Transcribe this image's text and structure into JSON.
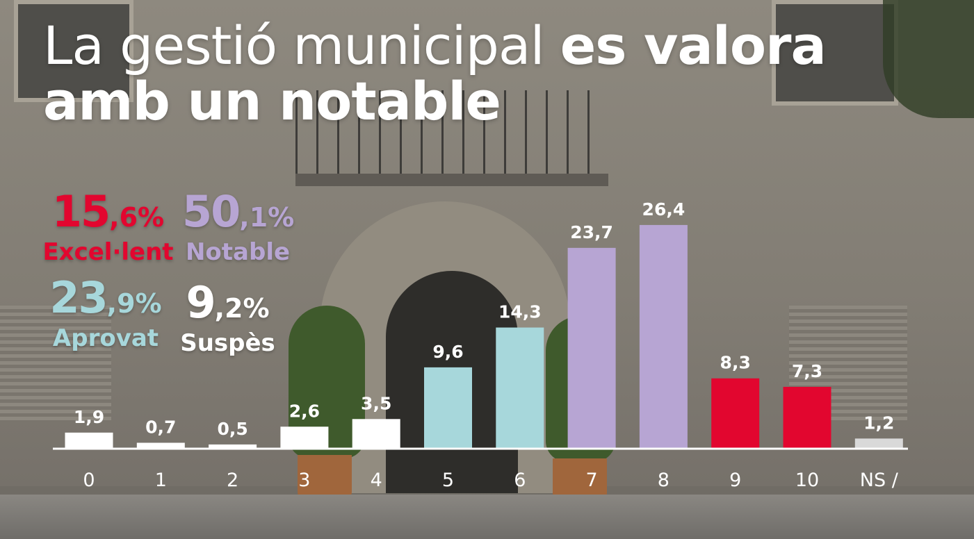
{
  "headline": {
    "light": "La gestió municipal ",
    "bold_1": "es valora",
    "bold_2": "amb un notable"
  },
  "summary": [
    {
      "pct_main": "15",
      "pct_rest": ",6%",
      "label": "Excel·lent",
      "color": "#e2062f"
    },
    {
      "pct_main": "50",
      "pct_rest": ",1%",
      "label": "Notable",
      "color": "#b7a5d3"
    },
    {
      "pct_main": "23",
      "pct_rest": ",9%",
      "label": "Aprovat",
      "color": "#a7d7db"
    },
    {
      "pct_main": "9",
      "pct_rest": ",2%",
      "label": "Suspès",
      "color": "#ffffff"
    }
  ],
  "chart_data": {
    "type": "bar",
    "categories": [
      "0",
      "1",
      "2",
      "3",
      "4",
      "5",
      "6",
      "7",
      "8",
      "9",
      "10",
      "NS /"
    ],
    "values": [
      1.9,
      0.7,
      0.5,
      2.6,
      3.5,
      9.6,
      14.3,
      23.7,
      26.4,
      8.3,
      7.3,
      1.2
    ],
    "value_labels": [
      "1,9",
      "0,7",
      "0,5",
      "2,6",
      "3,5",
      "9,6",
      "14,3",
      "23,7",
      "26,4",
      "8,3",
      "7,3",
      "1,2"
    ],
    "bar_colors": [
      "#ffffff",
      "#ffffff",
      "#ffffff",
      "#ffffff",
      "#ffffff",
      "#a7d7db",
      "#a7d7db",
      "#b7a5d3",
      "#b7a5d3",
      "#e2062f",
      "#e2062f",
      "#d9d9d9"
    ],
    "ylim": [
      0,
      28
    ],
    "grid": false,
    "legend": "none"
  }
}
